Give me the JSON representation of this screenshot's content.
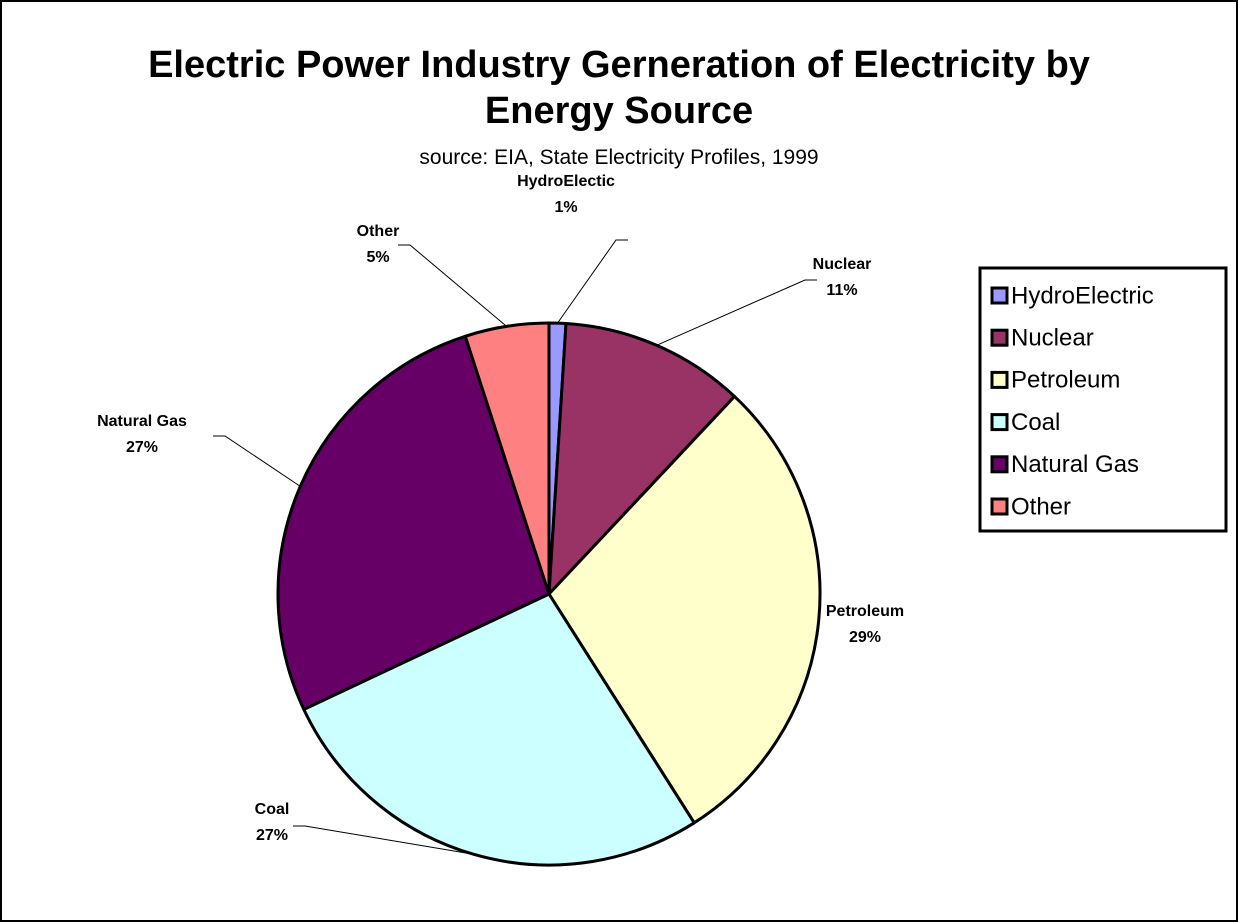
{
  "chart_data": {
    "type": "pie",
    "title": "Electric Power Industry Gerneration of Electricity by Energy Source",
    "subtitle": "source:  EIA, State Electricity Profiles, 1999",
    "categories": [
      "HydroElectric",
      "Nuclear",
      "Petroleum",
      "Coal",
      "Natural Gas",
      "Other"
    ],
    "label_names": [
      "HydroElectic",
      "Nuclear",
      "Petroleum",
      "Coal",
      "Natural Gas",
      "Other"
    ],
    "values": [
      1,
      11,
      29,
      27,
      27,
      5
    ],
    "value_labels": [
      "1%",
      "11%",
      "29%",
      "27%",
      "27%",
      "5%"
    ],
    "colors": [
      "#9999ff",
      "#993366",
      "#ffffcc",
      "#ccffff",
      "#660066",
      "#ff8080"
    ],
    "legend": "right"
  }
}
